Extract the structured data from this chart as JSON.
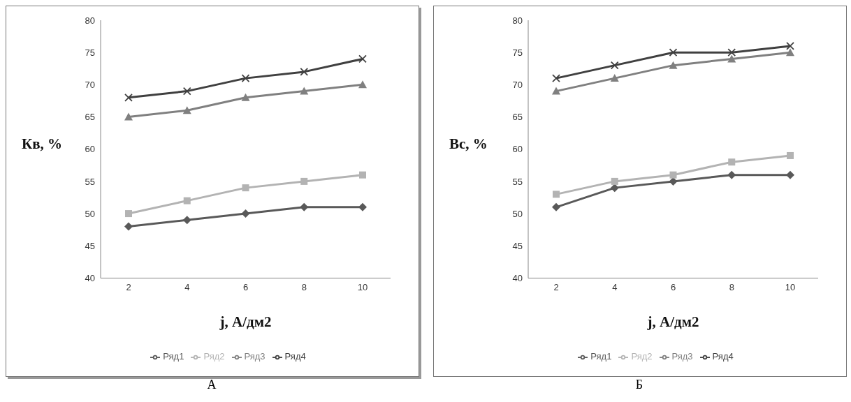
{
  "chart_data": [
    {
      "type": "line",
      "xlabel": "j, А/дм2",
      "ylabel": "Кв, %",
      "categories": [
        "2",
        "4",
        "6",
        "8",
        "10"
      ],
      "ylim": [
        40,
        80
      ],
      "yticks": [
        40,
        45,
        50,
        55,
        60,
        65,
        70,
        75,
        80
      ],
      "legend": "bottom",
      "annotations": [
        "А"
      ],
      "series": [
        {
          "name": "Ряд1",
          "color": "#595959",
          "marker": "diamond",
          "values": [
            48,
            49,
            50,
            51,
            51
          ]
        },
        {
          "name": "Ряд2",
          "color": "#b3b3b3",
          "marker": "square",
          "values": [
            50,
            52,
            54,
            55,
            56
          ]
        },
        {
          "name": "Ряд3",
          "color": "#808080",
          "marker": "triangle",
          "values": [
            65,
            66,
            68,
            69,
            70
          ]
        },
        {
          "name": "Ряд4",
          "color": "#404040",
          "marker": "cross",
          "values": [
            68,
            69,
            71,
            72,
            74
          ]
        }
      ]
    },
    {
      "type": "line",
      "xlabel": "j, А/дм2",
      "ylabel": "Вс, %",
      "categories": [
        "2",
        "4",
        "6",
        "8",
        "10"
      ],
      "ylim": [
        40,
        80
      ],
      "yticks": [
        40,
        45,
        50,
        55,
        60,
        65,
        70,
        75,
        80
      ],
      "legend": "bottom",
      "annotations": [
        "Б"
      ],
      "series": [
        {
          "name": "Ряд1",
          "color": "#595959",
          "marker": "diamond",
          "values": [
            51,
            54,
            55,
            56,
            56
          ]
        },
        {
          "name": "Ряд2",
          "color": "#b3b3b3",
          "marker": "square",
          "values": [
            53,
            55,
            56,
            58,
            59
          ]
        },
        {
          "name": "Ряд3",
          "color": "#808080",
          "marker": "triangle",
          "values": [
            69,
            71,
            73,
            74,
            75
          ]
        },
        {
          "name": "Ряд4",
          "color": "#404040",
          "marker": "cross",
          "values": [
            71,
            73,
            75,
            75,
            76
          ]
        }
      ]
    }
  ]
}
